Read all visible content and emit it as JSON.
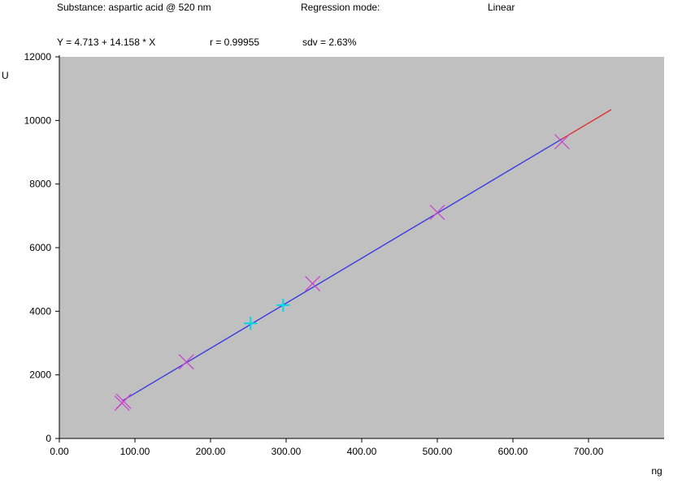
{
  "header": {
    "substance": "Substance: aspartic acid @ 520 nm",
    "regression_label": "Regression mode:",
    "regression_value": "Linear",
    "equation": "Y = 4.713 + 14.158 * X",
    "r_value": "r = 0.99955",
    "sdv_value": "sdv = 2.63%"
  },
  "chart_data": {
    "type": "scatter",
    "title": "",
    "xlabel": "ng",
    "ylabel": "U",
    "xlim": [
      0,
      800
    ],
    "ylim": [
      0,
      12000
    ],
    "x_ticks": [
      0,
      100,
      200,
      300,
      400,
      500,
      600,
      700
    ],
    "x_tick_labels": [
      "0.00",
      "100.00",
      "200.00",
      "300.00",
      "400.00",
      "500.00",
      "600.00",
      "700.00"
    ],
    "y_ticks": [
      0,
      2000,
      4000,
      6000,
      8000,
      10000,
      12000
    ],
    "y_tick_labels": [
      "0",
      "2000",
      "4000",
      "6000",
      "8000",
      "10000",
      "12000"
    ],
    "plot_background": "#c0c0c0",
    "series": [
      {
        "marker": "x",
        "color": "#cc44cc",
        "points": [
          {
            "x": 83,
            "y": 1110
          },
          {
            "x": 85,
            "y": 1170
          },
          {
            "x": 168,
            "y": 2410
          },
          {
            "x": 335,
            "y": 4870
          },
          {
            "x": 500,
            "y": 7110
          },
          {
            "x": 665,
            "y": 9330
          }
        ]
      },
      {
        "marker": "plus",
        "color": "#00d8e8",
        "points": [
          {
            "x": 253,
            "y": 3620
          },
          {
            "x": 296,
            "y": 4190
          }
        ]
      }
    ],
    "regression": {
      "intercept": 4.713,
      "slope": 14.158,
      "x_start": 83,
      "x_calibrated_end": 665,
      "x_extrapolated_end": 730,
      "calibrated_color": "#3a3ae0",
      "extrapolated_color": "#e03030"
    }
  }
}
